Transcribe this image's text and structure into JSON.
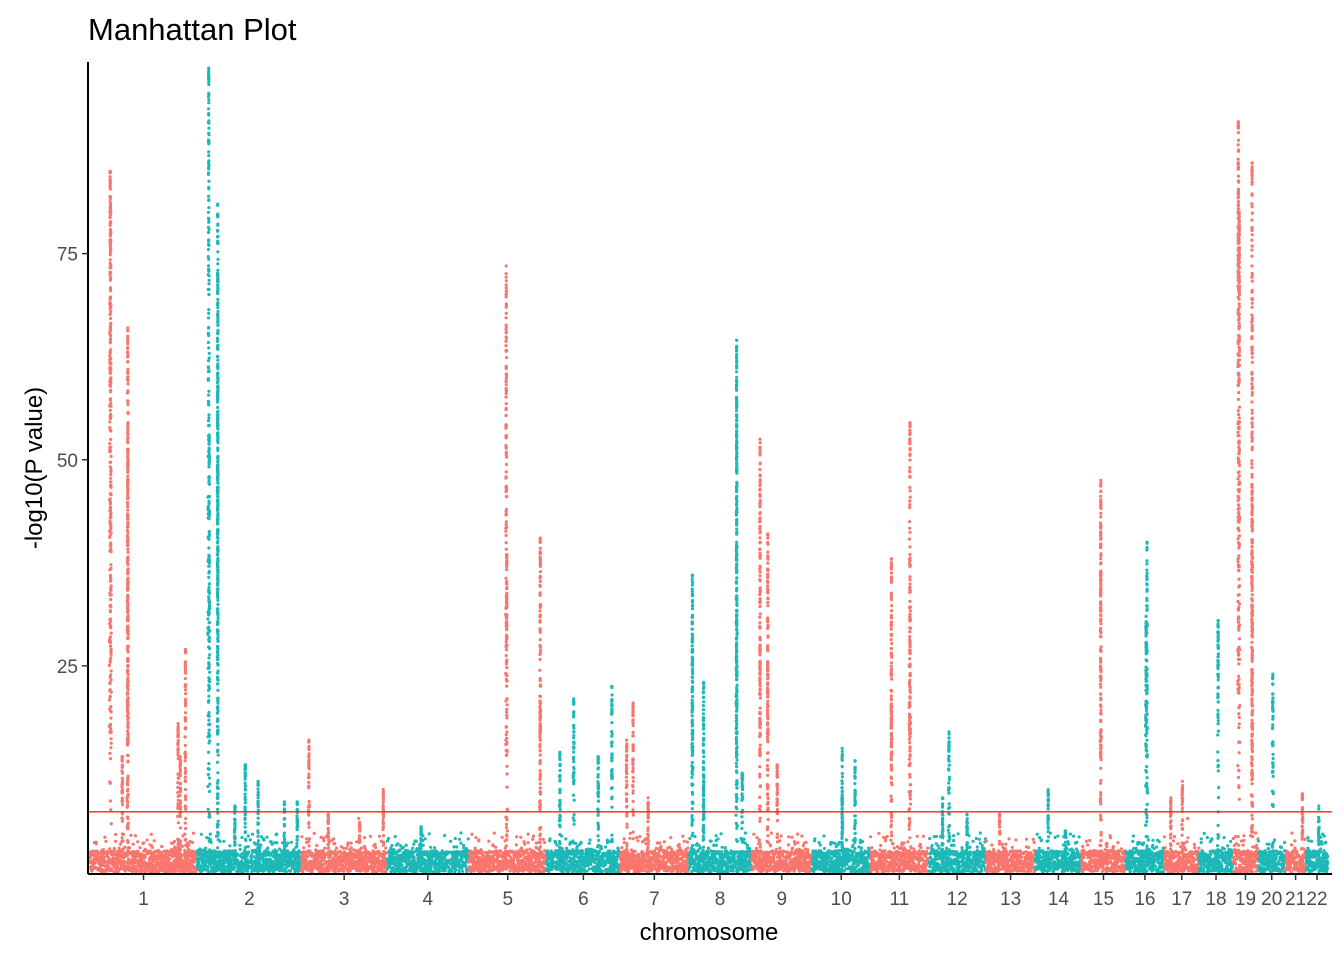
{
  "chart_data": {
    "type": "scatter",
    "title": "Manhattan Plot",
    "xlabel": "chromosome",
    "ylabel": "-log10(P value)",
    "ylim": [
      0,
      98
    ],
    "yticks": [
      25,
      50,
      75
    ],
    "threshold": 7.3,
    "grid": false,
    "legend": "none",
    "colors": {
      "odd": "#F8766D",
      "even": "#1DB8B8",
      "threshold": "#E8281E",
      "axis": "#000000"
    },
    "chromosomes": [
      {
        "name": "1",
        "start": 0.0,
        "end": 249.3,
        "label_pos": 124.6
      },
      {
        "name": "2",
        "start": 249.3,
        "end": 492.5,
        "label_pos": 370.9
      },
      {
        "name": "3",
        "start": 492.5,
        "end": 690.5,
        "label_pos": 591.5
      },
      {
        "name": "4",
        "start": 690.5,
        "end": 881.7,
        "label_pos": 786.1
      },
      {
        "name": "5",
        "start": 881.7,
        "end": 1062.6,
        "label_pos": 972.2
      },
      {
        "name": "6",
        "start": 1062.6,
        "end": 1233.8,
        "label_pos": 1148.2
      },
      {
        "name": "7",
        "start": 1233.8,
        "end": 1392.9,
        "label_pos": 1313.4
      },
      {
        "name": "8",
        "start": 1392.9,
        "end": 1539.3,
        "label_pos": 1466.1
      },
      {
        "name": "9",
        "start": 1539.3,
        "end": 1680.5,
        "label_pos": 1609.9
      },
      {
        "name": "10",
        "start": 1680.5,
        "end": 1816.1,
        "label_pos": 1748.3
      },
      {
        "name": "11",
        "start": 1816.1,
        "end": 1951.1,
        "label_pos": 1883.6
      },
      {
        "name": "12",
        "start": 1951.1,
        "end": 2084.9,
        "label_pos": 2018.0
      },
      {
        "name": "13",
        "start": 2084.9,
        "end": 2200.0,
        "label_pos": 2142.5
      },
      {
        "name": "14",
        "start": 2200.0,
        "end": 2307.3,
        "label_pos": 2253.7
      },
      {
        "name": "15",
        "start": 2307.3,
        "end": 2409.8,
        "label_pos": 2358.6
      },
      {
        "name": "16",
        "start": 2409.8,
        "end": 2500.2,
        "label_pos": 2455.0
      },
      {
        "name": "17",
        "start": 2500.2,
        "end": 2581.4,
        "label_pos": 2540.8
      },
      {
        "name": "18",
        "start": 2581.4,
        "end": 2659.5,
        "label_pos": 2620.5
      },
      {
        "name": "19",
        "start": 2659.5,
        "end": 2718.6,
        "label_pos": 2689.1
      },
      {
        "name": "20",
        "start": 2718.6,
        "end": 2781.6,
        "label_pos": 2750.1
      },
      {
        "name": "21",
        "start": 2781.6,
        "end": 2829.8,
        "label_pos": 2805.7
      },
      {
        "name": "22",
        "start": 2829.8,
        "end": 2881.1,
        "label_pos": 2855.5
      }
    ],
    "peaks": [
      {
        "chr": "1",
        "pos": 47,
        "y": 85,
        "width": 8
      },
      {
        "chr": "1",
        "pos": 48,
        "y": 81,
        "width": 6
      },
      {
        "chr": "1",
        "pos": 88,
        "y": 66,
        "width": 5
      },
      {
        "chr": "1",
        "pos": 88,
        "y": 51,
        "width": 4
      },
      {
        "chr": "1",
        "pos": 88,
        "y": 40.5,
        "width": 4
      },
      {
        "chr": "1",
        "pos": 75,
        "y": 14,
        "width": 3
      },
      {
        "chr": "1",
        "pos": 205,
        "y": 18,
        "width": 3
      },
      {
        "chr": "1",
        "pos": 222,
        "y": 27,
        "width": 2
      },
      {
        "chr": "1",
        "pos": 210,
        "y": 14,
        "width": 3
      },
      {
        "chr": "2",
        "pos": 27,
        "y": 97.5,
        "width": 8
      },
      {
        "chr": "2",
        "pos": 28,
        "y": 53,
        "width": 6
      },
      {
        "chr": "2",
        "pos": 48,
        "y": 81,
        "width": 3
      },
      {
        "chr": "2",
        "pos": 48,
        "y": 72.5,
        "width": 3
      },
      {
        "chr": "2",
        "pos": 48,
        "y": 48.5,
        "width": 3
      },
      {
        "chr": "2",
        "pos": 88,
        "y": 8,
        "width": 4
      },
      {
        "chr": "2",
        "pos": 112,
        "y": 13,
        "width": 3
      },
      {
        "chr": "2",
        "pos": 142,
        "y": 11,
        "width": 3
      },
      {
        "chr": "2",
        "pos": 203,
        "y": 8.5,
        "width": 4
      },
      {
        "chr": "2",
        "pos": 233,
        "y": 8.5,
        "width": 3
      },
      {
        "chr": "3",
        "pos": 17,
        "y": 16,
        "width": 4
      },
      {
        "chr": "3",
        "pos": 62,
        "y": 7,
        "width": 3
      },
      {
        "chr": "3",
        "pos": 135,
        "y": 6,
        "width": 4
      },
      {
        "chr": "3",
        "pos": 190,
        "y": 10,
        "width": 2
      },
      {
        "chr": "4",
        "pos": 80,
        "y": 5.5,
        "width": 4
      },
      {
        "chr": "5",
        "pos": 87,
        "y": 73.5,
        "width": 6
      },
      {
        "chr": "5",
        "pos": 88,
        "y": 38.5,
        "width": 6
      },
      {
        "chr": "5",
        "pos": 166,
        "y": 40.5,
        "width": 4
      },
      {
        "chr": "5",
        "pos": 166,
        "y": 19.5,
        "width": 4
      },
      {
        "chr": "6",
        "pos": 31,
        "y": 14.5,
        "width": 3
      },
      {
        "chr": "6",
        "pos": 63,
        "y": 21,
        "width": 6
      },
      {
        "chr": "6",
        "pos": 120,
        "y": 14,
        "width": 3
      },
      {
        "chr": "6",
        "pos": 152,
        "y": 22.5,
        "width": 3
      },
      {
        "chr": "7",
        "pos": 15,
        "y": 16,
        "width": 3
      },
      {
        "chr": "7",
        "pos": 30,
        "y": 20.5,
        "width": 4
      },
      {
        "chr": "7",
        "pos": 65,
        "y": 9,
        "width": 4
      },
      {
        "chr": "8",
        "pos": 9,
        "y": 36,
        "width": 4
      },
      {
        "chr": "8",
        "pos": 9,
        "y": 27,
        "width": 4
      },
      {
        "chr": "8",
        "pos": 35,
        "y": 23,
        "width": 3
      },
      {
        "chr": "8",
        "pos": 35,
        "y": 11.5,
        "width": 3
      },
      {
        "chr": "8",
        "pos": 112,
        "y": 64.5,
        "width": 4
      },
      {
        "chr": "8",
        "pos": 112,
        "y": 60,
        "width": 4
      },
      {
        "chr": "8",
        "pos": 112,
        "y": 33.5,
        "width": 5
      },
      {
        "chr": "8",
        "pos": 125,
        "y": 12,
        "width": 4
      },
      {
        "chr": "9",
        "pos": 20,
        "y": 52.5,
        "width": 4
      },
      {
        "chr": "9",
        "pos": 20,
        "y": 27.5,
        "width": 4
      },
      {
        "chr": "9",
        "pos": 38,
        "y": 41,
        "width": 3
      },
      {
        "chr": "9",
        "pos": 38,
        "y": 25.5,
        "width": 3
      },
      {
        "chr": "9",
        "pos": 60,
        "y": 13,
        "width": 3
      },
      {
        "chr": "10",
        "pos": 70,
        "y": 15,
        "width": 3
      },
      {
        "chr": "10",
        "pos": 70,
        "y": 9,
        "width": 3
      },
      {
        "chr": "10",
        "pos": 100,
        "y": 13.5,
        "width": 3
      },
      {
        "chr": "11",
        "pos": 49,
        "y": 38,
        "width": 4
      },
      {
        "chr": "11",
        "pos": 49,
        "y": 21,
        "width": 4
      },
      {
        "chr": "11",
        "pos": 92,
        "y": 54.5,
        "width": 6
      },
      {
        "chr": "11",
        "pos": 92,
        "y": 31,
        "width": 6
      },
      {
        "chr": "12",
        "pos": 33,
        "y": 9,
        "width": 3
      },
      {
        "chr": "12",
        "pos": 48,
        "y": 17,
        "width": 6
      },
      {
        "chr": "12",
        "pos": 90,
        "y": 7,
        "width": 4
      },
      {
        "chr": "13",
        "pos": 32,
        "y": 7,
        "width": 4
      },
      {
        "chr": "14",
        "pos": 30,
        "y": 10,
        "width": 3
      },
      {
        "chr": "14",
        "pos": 70,
        "y": 5,
        "width": 3
      },
      {
        "chr": "15",
        "pos": 45,
        "y": 47.5,
        "width": 4
      },
      {
        "chr": "15",
        "pos": 45,
        "y": 36.5,
        "width": 4
      },
      {
        "chr": "16",
        "pos": 50,
        "y": 40,
        "width": 3
      },
      {
        "chr": "16",
        "pos": 48,
        "y": 31,
        "width": 5
      },
      {
        "chr": "17",
        "pos": 15,
        "y": 9,
        "width": 3
      },
      {
        "chr": "17",
        "pos": 42,
        "y": 11,
        "width": 4
      },
      {
        "chr": "18",
        "pos": 44,
        "y": 30.5,
        "width": 4
      },
      {
        "chr": "19",
        "pos": 13,
        "y": 91,
        "width": 4
      },
      {
        "chr": "19",
        "pos": 15,
        "y": 80,
        "width": 4
      },
      {
        "chr": "19",
        "pos": 45,
        "y": 86,
        "width": 4
      },
      {
        "chr": "19",
        "pos": 45,
        "y": 47,
        "width": 4
      },
      {
        "chr": "19",
        "pos": 45,
        "y": 27,
        "width": 4
      },
      {
        "chr": "20",
        "pos": 34,
        "y": 24,
        "width": 4
      },
      {
        "chr": "21",
        "pos": 40,
        "y": 9.5,
        "width": 3
      },
      {
        "chr": "22",
        "pos": 30,
        "y": 8,
        "width": 4
      }
    ]
  }
}
